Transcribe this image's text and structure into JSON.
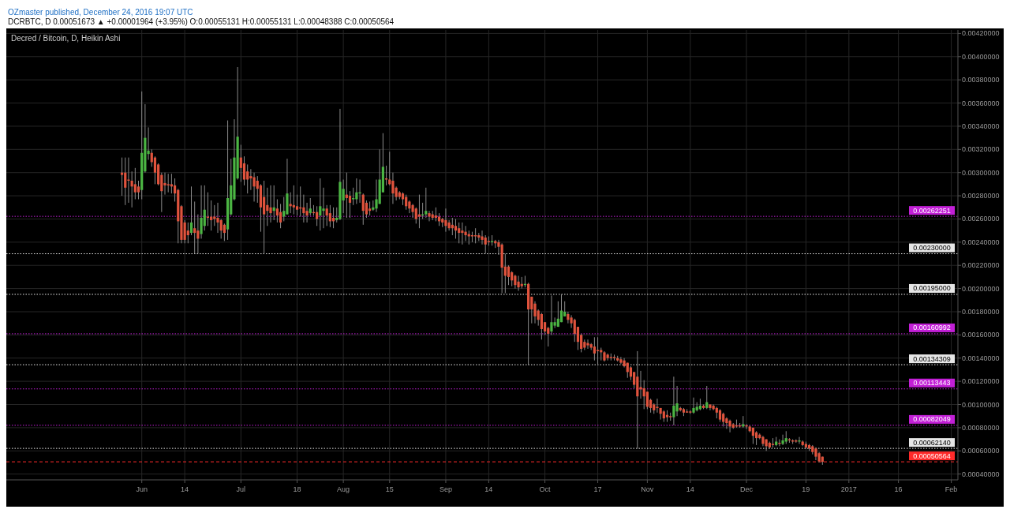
{
  "chart_data": {
    "type": "candlestick",
    "title": "Decred / Bitcoin, D, Heikin Ashi",
    "annotations": [
      "OZmaster published, December 24, 2016 19:07 UTC",
      "DCRBTC, D  0.00051673 ▲ +0.00001964 (+3.95%)  O:0.00055131  H:0.00055131  L:0.00048388  C:0.00050564"
    ],
    "x": [
      "2016-05-26",
      "2016-05-27",
      "2016-05-28",
      "2016-05-29",
      "2016-05-30",
      "2016-05-31",
      "2016-06-01",
      "2016-06-02",
      "2016-06-03",
      "2016-06-04",
      "2016-06-05",
      "2016-06-06",
      "2016-06-07",
      "2016-06-08",
      "2016-06-09",
      "2016-06-10",
      "2016-06-11",
      "2016-06-12",
      "2016-06-13",
      "2016-06-14",
      "2016-06-15",
      "2016-06-16",
      "2016-06-17",
      "2016-06-18",
      "2016-06-19",
      "2016-06-20",
      "2016-06-21",
      "2016-06-22",
      "2016-06-23",
      "2016-06-24",
      "2016-06-25",
      "2016-06-26",
      "2016-06-27",
      "2016-06-28",
      "2016-06-29",
      "2016-06-30",
      "2016-07-01",
      "2016-07-02",
      "2016-07-03",
      "2016-07-04",
      "2016-07-05",
      "2016-07-06",
      "2016-07-07",
      "2016-07-08",
      "2016-07-09",
      "2016-07-10",
      "2016-07-11",
      "2016-07-12",
      "2016-07-13",
      "2016-07-14",
      "2016-07-15",
      "2016-07-16",
      "2016-07-17",
      "2016-07-18",
      "2016-07-19",
      "2016-07-20",
      "2016-07-21",
      "2016-07-22",
      "2016-07-23",
      "2016-07-24",
      "2016-07-25",
      "2016-07-26",
      "2016-07-27",
      "2016-07-28",
      "2016-07-29",
      "2016-07-30",
      "2016-07-31",
      "2016-08-01",
      "2016-08-02",
      "2016-08-03",
      "2016-08-04",
      "2016-08-05",
      "2016-08-06",
      "2016-08-07",
      "2016-08-08",
      "2016-08-09",
      "2016-08-10",
      "2016-08-11",
      "2016-08-12",
      "2016-08-13",
      "2016-08-14",
      "2016-08-15",
      "2016-08-16",
      "2016-08-17",
      "2016-08-18",
      "2016-08-19",
      "2016-08-20",
      "2016-08-21",
      "2016-08-22",
      "2016-08-23",
      "2016-08-24",
      "2016-08-25",
      "2016-08-26",
      "2016-08-27",
      "2016-08-28",
      "2016-08-29",
      "2016-08-30",
      "2016-08-31",
      "2016-09-01",
      "2016-09-02",
      "2016-09-03",
      "2016-09-04",
      "2016-09-05",
      "2016-09-06",
      "2016-09-07",
      "2016-09-08",
      "2016-09-09",
      "2016-09-10",
      "2016-09-11",
      "2016-09-12",
      "2016-09-13",
      "2016-09-14",
      "2016-09-15",
      "2016-09-16",
      "2016-09-17",
      "2016-09-18",
      "2016-09-19",
      "2016-09-20",
      "2016-09-21",
      "2016-09-22",
      "2016-09-23",
      "2016-09-24",
      "2016-09-25",
      "2016-09-26",
      "2016-09-27",
      "2016-09-28",
      "2016-09-29",
      "2016-09-30",
      "2016-10-01",
      "2016-10-02",
      "2016-10-03",
      "2016-10-04",
      "2016-10-05",
      "2016-10-06",
      "2016-10-07",
      "2016-10-08",
      "2016-10-09",
      "2016-10-10",
      "2016-10-11",
      "2016-10-12",
      "2016-10-13",
      "2016-10-14",
      "2016-10-15",
      "2016-10-16",
      "2016-10-17",
      "2016-10-18",
      "2016-10-19",
      "2016-10-20",
      "2016-10-21",
      "2016-10-22",
      "2016-10-23",
      "2016-10-24",
      "2016-10-25",
      "2016-10-26",
      "2016-10-27",
      "2016-10-28",
      "2016-10-29",
      "2016-10-30",
      "2016-10-31",
      "2016-11-01",
      "2016-11-02",
      "2016-11-03",
      "2016-11-04",
      "2016-11-05",
      "2016-11-06",
      "2016-11-07",
      "2016-11-08",
      "2016-11-09",
      "2016-11-10",
      "2016-11-11",
      "2016-11-12",
      "2016-11-13",
      "2016-11-14",
      "2016-11-15",
      "2016-11-16",
      "2016-11-17",
      "2016-11-18",
      "2016-11-19",
      "2016-11-20",
      "2016-11-21",
      "2016-11-22",
      "2016-11-23",
      "2016-11-24",
      "2016-11-25",
      "2016-11-26",
      "2016-11-27",
      "2016-11-28",
      "2016-11-29",
      "2016-11-30",
      "2016-12-01",
      "2016-12-02",
      "2016-12-03",
      "2016-12-04",
      "2016-12-05",
      "2016-12-06",
      "2016-12-07",
      "2016-12-08",
      "2016-12-09",
      "2016-12-10",
      "2016-12-11",
      "2016-12-12",
      "2016-12-13",
      "2016-12-14",
      "2016-12-15",
      "2016-12-16",
      "2016-12-17",
      "2016-12-18",
      "2016-12-19",
      "2016-12-20",
      "2016-12-21",
      "2016-12-22",
      "2016-12-23",
      "2016-12-24"
    ],
    "ohlc": [
      [
        0.003,
        0.00313,
        0.0028,
        0.00298
      ],
      [
        0.003,
        0.00313,
        0.00272,
        0.00287
      ],
      [
        0.00294,
        0.00313,
        0.00274,
        0.00293
      ],
      [
        0.00293,
        0.00301,
        0.0027,
        0.00288
      ],
      [
        0.0029,
        0.00304,
        0.00277,
        0.00283
      ],
      [
        0.00288,
        0.00293,
        0.00277,
        0.00283
      ],
      [
        0.00285,
        0.0037,
        0.00277,
        0.00317
      ],
      [
        0.00301,
        0.00359,
        0.003,
        0.0033
      ],
      [
        0.00316,
        0.00339,
        0.00311,
        0.00319
      ],
      [
        0.00317,
        0.0032,
        0.00305,
        0.00309
      ],
      [
        0.00313,
        0.00314,
        0.0029,
        0.003
      ],
      [
        0.00307,
        0.00308,
        0.00289,
        0.0029
      ],
      [
        0.00298,
        0.003,
        0.00266,
        0.00284
      ],
      [
        0.00291,
        0.003,
        0.00281,
        0.00289
      ],
      [
        0.0029,
        0.00299,
        0.00283,
        0.00289
      ],
      [
        0.0029,
        0.00299,
        0.00282,
        0.00288
      ],
      [
        0.00289,
        0.00295,
        0.00275,
        0.00282
      ],
      [
        0.00285,
        0.00286,
        0.00239,
        0.00258
      ],
      [
        0.00271,
        0.00272,
        0.00239,
        0.00242
      ],
      [
        0.00257,
        0.00259,
        0.00239,
        0.00242
      ],
      [
        0.0025,
        0.00257,
        0.00239,
        0.00246
      ],
      [
        0.00248,
        0.00288,
        0.00246,
        0.00257
      ],
      [
        0.00252,
        0.00275,
        0.0023,
        0.00248
      ],
      [
        0.0025,
        0.00264,
        0.0023,
        0.00243
      ],
      [
        0.00247,
        0.00289,
        0.00243,
        0.00261
      ],
      [
        0.00254,
        0.00289,
        0.0025,
        0.00268
      ],
      [
        0.00262,
        0.00283,
        0.00254,
        0.00261
      ],
      [
        0.00262,
        0.00276,
        0.0025,
        0.00259
      ],
      [
        0.00262,
        0.00272,
        0.00254,
        0.0026
      ],
      [
        0.00261,
        0.00274,
        0.00248,
        0.00257
      ],
      [
        0.00259,
        0.0026,
        0.00243,
        0.0025
      ],
      [
        0.00255,
        0.00256,
        0.00241,
        0.00248
      ],
      [
        0.00251,
        0.00345,
        0.00242,
        0.00278
      ],
      [
        0.00264,
        0.00312,
        0.00263,
        0.00289
      ],
      [
        0.00277,
        0.00346,
        0.00276,
        0.00313
      ],
      [
        0.00295,
        0.00391,
        0.00294,
        0.00331
      ],
      [
        0.00313,
        0.00324,
        0.00292,
        0.00304
      ],
      [
        0.00308,
        0.00314,
        0.00289,
        0.00294
      ],
      [
        0.00301,
        0.00307,
        0.00282,
        0.00294
      ],
      [
        0.00297,
        0.00303,
        0.00285,
        0.00295
      ],
      [
        0.00296,
        0.003,
        0.00275,
        0.00288
      ],
      [
        0.00293,
        0.00297,
        0.00274,
        0.00286
      ],
      [
        0.00289,
        0.0029,
        0.00249,
        0.0027
      ],
      [
        0.00279,
        0.00293,
        0.0023,
        0.00264
      ],
      [
        0.00272,
        0.00287,
        0.00254,
        0.00267
      ],
      [
        0.0027,
        0.00289,
        0.00257,
        0.00265
      ],
      [
        0.00267,
        0.00289,
        0.00259,
        0.0027
      ],
      [
        0.00269,
        0.00277,
        0.00257,
        0.00263
      ],
      [
        0.00266,
        0.00273,
        0.00252,
        0.00257
      ],
      [
        0.00262,
        0.00279,
        0.00258,
        0.00267
      ],
      [
        0.00264,
        0.00312,
        0.00264,
        0.00282
      ],
      [
        0.00273,
        0.00283,
        0.00265,
        0.00271
      ],
      [
        0.00272,
        0.00289,
        0.00264,
        0.0027
      ],
      [
        0.00271,
        0.00281,
        0.00263,
        0.00268
      ],
      [
        0.0027,
        0.00288,
        0.00262,
        0.00269
      ],
      [
        0.0027,
        0.00281,
        0.00257,
        0.00265
      ],
      [
        0.00267,
        0.00274,
        0.00257,
        0.00263
      ],
      [
        0.00265,
        0.00278,
        0.00263,
        0.00269
      ],
      [
        0.00266,
        0.00272,
        0.00263,
        0.00265
      ],
      [
        0.00266,
        0.00271,
        0.00254,
        0.0026
      ],
      [
        0.00263,
        0.00295,
        0.0025,
        0.00271
      ],
      [
        0.00267,
        0.00287,
        0.00252,
        0.00269
      ],
      [
        0.00269,
        0.00272,
        0.00254,
        0.00263
      ],
      [
        0.00265,
        0.00272,
        0.00253,
        0.00258
      ],
      [
        0.00261,
        0.0027,
        0.00252,
        0.00258
      ],
      [
        0.00259,
        0.0027,
        0.00257,
        0.00261
      ],
      [
        0.0026,
        0.00355,
        0.00259,
        0.00292
      ],
      [
        0.00276,
        0.00294,
        0.00265,
        0.00286
      ],
      [
        0.00281,
        0.003,
        0.00261,
        0.00278
      ],
      [
        0.0028,
        0.00284,
        0.00261,
        0.00274
      ],
      [
        0.00277,
        0.00287,
        0.00272,
        0.00278
      ],
      [
        0.00277,
        0.00295,
        0.00273,
        0.00283
      ],
      [
        0.00282,
        0.00294,
        0.00274,
        0.00283
      ],
      [
        0.00281,
        0.00282,
        0.00255,
        0.00267
      ],
      [
        0.00274,
        0.00276,
        0.00261,
        0.00264
      ],
      [
        0.00269,
        0.00275,
        0.00263,
        0.00267
      ],
      [
        0.00268,
        0.00276,
        0.00267,
        0.0027
      ],
      [
        0.00269,
        0.00294,
        0.00266,
        0.00277
      ],
      [
        0.00273,
        0.0032,
        0.00273,
        0.00294
      ],
      [
        0.00283,
        0.00334,
        0.00283,
        0.00305
      ],
      [
        0.00295,
        0.00306,
        0.00289,
        0.00294
      ],
      [
        0.00294,
        0.00318,
        0.00289,
        0.0029
      ],
      [
        0.00293,
        0.003,
        0.00273,
        0.00282
      ],
      [
        0.00287,
        0.00288,
        0.00276,
        0.00279
      ],
      [
        0.00283,
        0.00284,
        0.00277,
        0.00279
      ],
      [
        0.00282,
        0.00283,
        0.00272,
        0.00277
      ],
      [
        0.00279,
        0.00281,
        0.00268,
        0.00271
      ],
      [
        0.00275,
        0.00276,
        0.00265,
        0.00269
      ],
      [
        0.00272,
        0.00273,
        0.00261,
        0.00266
      ],
      [
        0.00269,
        0.0027,
        0.00256,
        0.0026
      ],
      [
        0.00264,
        0.00281,
        0.00252,
        0.00262
      ],
      [
        0.00263,
        0.00274,
        0.0026,
        0.00264
      ],
      [
        0.00264,
        0.00287,
        0.00261,
        0.00267
      ],
      [
        0.00265,
        0.00267,
        0.00258,
        0.00262
      ],
      [
        0.00264,
        0.00267,
        0.00259,
        0.00261
      ],
      [
        0.00263,
        0.0027,
        0.00258,
        0.00261
      ],
      [
        0.00262,
        0.00265,
        0.00254,
        0.00258
      ],
      [
        0.0026,
        0.00261,
        0.00253,
        0.00257
      ],
      [
        0.00259,
        0.00269,
        0.00249,
        0.00254
      ],
      [
        0.00257,
        0.00259,
        0.0025,
        0.00252
      ],
      [
        0.00255,
        0.00261,
        0.00246,
        0.00252
      ],
      [
        0.00254,
        0.0026,
        0.00243,
        0.0025
      ],
      [
        0.00252,
        0.00257,
        0.00239,
        0.00248
      ],
      [
        0.0025,
        0.00257,
        0.00238,
        0.00248
      ],
      [
        0.00249,
        0.00254,
        0.00241,
        0.00246
      ],
      [
        0.00247,
        0.0025,
        0.00238,
        0.00245
      ],
      [
        0.00246,
        0.00249,
        0.0024,
        0.00245
      ],
      [
        0.00246,
        0.00252,
        0.00239,
        0.00245
      ],
      [
        0.00246,
        0.00248,
        0.00241,
        0.00244
      ],
      [
        0.00245,
        0.0025,
        0.00238,
        0.00242
      ],
      [
        0.00244,
        0.00246,
        0.0023,
        0.00238
      ],
      [
        0.00241,
        0.00245,
        0.00237,
        0.0024
      ],
      [
        0.0024,
        0.00246,
        0.00237,
        0.00241
      ],
      [
        0.00241,
        0.00242,
        0.00235,
        0.00239
      ],
      [
        0.0024,
        0.00242,
        0.00229,
        0.00236
      ],
      [
        0.00238,
        0.00239,
        0.00196,
        0.00218
      ],
      [
        0.00219,
        0.0023,
        0.00196,
        0.00211
      ],
      [
        0.00219,
        0.0022,
        0.00203,
        0.0021
      ],
      [
        0.00214,
        0.00215,
        0.00202,
        0.00207
      ],
      [
        0.00211,
        0.00212,
        0.002,
        0.00203
      ],
      [
        0.00206,
        0.00211,
        0.00198,
        0.00201
      ],
      [
        0.00204,
        0.0021,
        0.002,
        0.00202
      ],
      [
        0.00203,
        0.00211,
        0.00201,
        0.00204
      ],
      [
        0.00204,
        0.00205,
        0.00134,
        0.00182
      ],
      [
        0.00193,
        0.00193,
        0.0017,
        0.00182
      ],
      [
        0.00187,
        0.00189,
        0.0017,
        0.00176
      ],
      [
        0.00181,
        0.00182,
        0.00168,
        0.00173
      ],
      [
        0.00178,
        0.00179,
        0.00156,
        0.00165
      ],
      [
        0.00171,
        0.00171,
        0.0016,
        0.00163
      ],
      [
        0.00166,
        0.00167,
        0.0015,
        0.00161
      ],
      [
        0.00163,
        0.00194,
        0.0016,
        0.00171
      ],
      [
        0.00168,
        0.00175,
        0.00166,
        0.00171
      ],
      [
        0.00167,
        0.00189,
        0.00167,
        0.00174
      ],
      [
        0.00171,
        0.00195,
        0.00171,
        0.00181
      ],
      [
        0.00176,
        0.00189,
        0.00176,
        0.0018
      ],
      [
        0.00178,
        0.0018,
        0.0017,
        0.00173
      ],
      [
        0.00175,
        0.00177,
        0.00166,
        0.0017
      ],
      [
        0.00173,
        0.00174,
        0.00154,
        0.00161
      ],
      [
        0.00167,
        0.00167,
        0.00147,
        0.00154
      ],
      [
        0.0016,
        0.00161,
        0.00145,
        0.00148
      ],
      [
        0.00154,
        0.00156,
        0.00147,
        0.00149
      ],
      [
        0.00153,
        0.00156,
        0.00148,
        0.00151
      ],
      [
        0.00152,
        0.00153,
        0.00147,
        0.00149
      ],
      [
        0.0015,
        0.00158,
        0.00138,
        0.00144
      ],
      [
        0.00147,
        0.00158,
        0.00135,
        0.00146
      ],
      [
        0.00147,
        0.00149,
        0.00138,
        0.00145
      ],
      [
        0.00145,
        0.00146,
        0.00137,
        0.00138
      ],
      [
        0.00143,
        0.00144,
        0.00138,
        0.0014
      ],
      [
        0.00141,
        0.00144,
        0.00138,
        0.0014
      ],
      [
        0.00141,
        0.00143,
        0.00138,
        0.0014
      ],
      [
        0.0014,
        0.00142,
        0.00137,
        0.00138
      ],
      [
        0.00139,
        0.00141,
        0.00135,
        0.00136
      ],
      [
        0.00138,
        0.0014,
        0.00132,
        0.00133
      ],
      [
        0.00136,
        0.00136,
        0.00123,
        0.00128
      ],
      [
        0.00132,
        0.00133,
        0.00121,
        0.00124
      ],
      [
        0.00128,
        0.00128,
        0.00114,
        0.00117
      ],
      [
        0.00124,
        0.00146,
        0.00062,
        0.00107
      ],
      [
        0.00115,
        0.00129,
        0.00105,
        0.00113
      ],
      [
        0.00114,
        0.00121,
        0.00096,
        0.00107
      ],
      [
        0.00111,
        0.00111,
        0.00096,
        0.00098
      ],
      [
        0.00104,
        0.00105,
        0.00093,
        0.00097
      ],
      [
        0.001,
        0.00101,
        0.00092,
        0.00095
      ],
      [
        0.00098,
        0.00105,
        0.00093,
        0.00097
      ],
      [
        0.00097,
        0.00097,
        0.00087,
        0.00092
      ],
      [
        0.00094,
        0.00095,
        0.00085,
        0.00088
      ],
      [
        0.00091,
        0.00095,
        0.00085,
        0.00089
      ],
      [
        0.0009,
        0.00093,
        0.00086,
        0.00089
      ],
      [
        0.00089,
        0.00124,
        0.00082,
        0.00099
      ],
      [
        0.00094,
        0.00116,
        0.0009,
        0.00101
      ],
      [
        0.00097,
        0.00098,
        0.00094,
        0.00095
      ],
      [
        0.00096,
        0.00097,
        0.0009,
        0.00093
      ],
      [
        0.00094,
        0.00096,
        0.00093,
        0.00093
      ],
      [
        0.00094,
        0.00095,
        0.00092,
        0.00093
      ],
      [
        0.00093,
        0.00106,
        0.00092,
        0.00097
      ],
      [
        0.00095,
        0.00102,
        0.00094,
        0.00098
      ],
      [
        0.00096,
        0.00105,
        0.00095,
        0.00099
      ],
      [
        0.00099,
        0.001,
        0.00096,
        0.00097
      ],
      [
        0.00097,
        0.00116,
        0.00096,
        0.00102
      ],
      [
        0.001,
        0.001,
        0.00095,
        0.00097
      ],
      [
        0.00099,
        0.001,
        0.00095,
        0.00096
      ],
      [
        0.00097,
        0.00098,
        0.00088,
        0.00093
      ],
      [
        0.00095,
        0.00096,
        0.00085,
        0.00087
      ],
      [
        0.00092,
        0.00093,
        0.00081,
        0.00085
      ],
      [
        0.00088,
        0.00089,
        0.00079,
        0.00084
      ],
      [
        0.00086,
        0.00087,
        0.00076,
        0.00081
      ],
      [
        0.00083,
        0.00084,
        0.00079,
        0.0008
      ],
      [
        0.00082,
        0.00087,
        0.0008,
        0.00081
      ],
      [
        0.00082,
        0.00084,
        0.0008,
        0.00081
      ],
      [
        0.00081,
        0.0009,
        0.0008,
        0.00083
      ],
      [
        0.00082,
        0.00083,
        0.00079,
        0.00081
      ],
      [
        0.00081,
        0.00082,
        0.00076,
        0.00077
      ],
      [
        0.0008,
        0.0008,
        0.00066,
        0.00073
      ],
      [
        0.00076,
        0.00077,
        0.00065,
        0.00071
      ],
      [
        0.00074,
        0.00075,
        0.0007,
        0.00071
      ],
      [
        0.00072,
        0.00073,
        0.00064,
        0.00066
      ],
      [
        0.0007,
        0.0007,
        0.0006,
        0.00064
      ],
      [
        0.00067,
        0.00068,
        0.00062,
        0.00063
      ],
      [
        0.00066,
        0.00071,
        0.00063,
        0.00065
      ],
      [
        0.00065,
        0.00072,
        0.00064,
        0.00068
      ],
      [
        0.00067,
        0.0007,
        0.00064,
        0.00066
      ],
      [
        0.00066,
        0.00074,
        0.00065,
        0.00069
      ],
      [
        0.00068,
        0.00077,
        0.00066,
        0.00071
      ],
      [
        0.0007,
        0.00071,
        0.00067,
        0.00069
      ],
      [
        0.00069,
        0.0007,
        0.00066,
        0.00068
      ],
      [
        0.00069,
        0.0007,
        0.00067,
        0.00068
      ],
      [
        0.00068,
        0.00072,
        0.00066,
        0.00069
      ],
      [
        0.00068,
        0.00069,
        0.00064,
        0.00065
      ],
      [
        0.00066,
        0.00068,
        0.00062,
        0.00063
      ],
      [
        0.00065,
        0.00066,
        0.0006,
        0.00062
      ],
      [
        0.00064,
        0.00065,
        0.00057,
        0.00059
      ],
      [
        0.00062,
        0.00063,
        0.00052,
        0.00055
      ],
      [
        0.00058,
        0.00059,
        0.0005,
        0.00051
      ],
      [
        0.00055,
        0.00055,
        0.00048,
        0.000506
      ]
    ],
    "colors": [
      "#e0533d",
      "#e0533d",
      "#e0533d",
      "#e0533d",
      "#e0533d",
      "#e0533d",
      "#4bb543",
      "#4bb543",
      "#4bb543",
      "#e0533d",
      "#e0533d",
      "#e0533d",
      "#e0533d",
      "#e0533d",
      "#e0533d",
      "#e0533d",
      "#e0533d",
      "#e0533d",
      "#e0533d",
      "#e0533d",
      "#e0533d",
      "#4bb543",
      "#e0533d",
      "#e0533d",
      "#4bb543",
      "#4bb543",
      "#e0533d",
      "#e0533d",
      "#e0533d",
      "#e0533d",
      "#e0533d",
      "#e0533d",
      "#4bb543",
      "#4bb543",
      "#4bb543",
      "#4bb543",
      "#e0533d",
      "#e0533d",
      "#e0533d",
      "#e0533d",
      "#e0533d",
      "#e0533d",
      "#e0533d",
      "#e0533d",
      "#e0533d",
      "#e0533d",
      "#4bb543",
      "#e0533d",
      "#e0533d",
      "#4bb543",
      "#4bb543",
      "#e0533d",
      "#e0533d",
      "#e0533d",
      "#e0533d",
      "#e0533d",
      "#e0533d",
      "#4bb543",
      "#e0533d",
      "#e0533d",
      "#4bb543",
      "#4bb543",
      "#e0533d",
      "#e0533d",
      "#e0533d",
      "#4bb543",
      "#4bb543",
      "#4bb543",
      "#e0533d",
      "#e0533d",
      "#4bb543",
      "#4bb543",
      "#4bb543",
      "#e0533d",
      "#e0533d",
      "#e0533d",
      "#4bb543",
      "#4bb543",
      "#4bb543",
      "#4bb543",
      "#e0533d",
      "#e0533d",
      "#e0533d",
      "#e0533d",
      "#e0533d",
      "#e0533d",
      "#e0533d",
      "#e0533d",
      "#e0533d",
      "#e0533d",
      "#e0533d",
      "#4bb543",
      "#4bb543",
      "#e0533d",
      "#e0533d",
      "#e0533d",
      "#e0533d",
      "#e0533d",
      "#e0533d",
      "#e0533d",
      "#e0533d",
      "#e0533d",
      "#e0533d",
      "#e0533d",
      "#e0533d",
      "#e0533d",
      "#e0533d",
      "#e0533d",
      "#e0533d",
      "#e0533d",
      "#e0533d",
      "#e0533d",
      "#4bb543",
      "#e0533d",
      "#e0533d",
      "#e0533d",
      "#e0533d",
      "#e0533d",
      "#e0533d",
      "#e0533d",
      "#e0533d",
      "#e0533d",
      "#4bb543",
      "#e0533d",
      "#e0533d",
      "#e0533d",
      "#e0533d",
      "#e0533d",
      "#e0533d",
      "#e0533d",
      "#4bb543",
      "#4bb543",
      "#4bb543",
      "#4bb543",
      "#4bb543",
      "#e0533d",
      "#e0533d",
      "#e0533d",
      "#e0533d",
      "#e0533d",
      "#e0533d",
      "#e0533d",
      "#e0533d",
      "#e0533d",
      "#e0533d",
      "#e0533d",
      "#e0533d",
      "#e0533d",
      "#e0533d",
      "#e0533d",
      "#e0533d",
      "#e0533d",
      "#e0533d",
      "#e0533d",
      "#e0533d",
      "#e0533d",
      "#e0533d",
      "#e0533d",
      "#e0533d",
      "#e0533d",
      "#e0533d",
      "#e0533d",
      "#e0533d",
      "#e0533d",
      "#e0533d",
      "#e0533d",
      "#e0533d",
      "#4bb543",
      "#4bb543",
      "#e0533d",
      "#e0533d",
      "#e0533d",
      "#e0533d",
      "#4bb543",
      "#4bb543",
      "#4bb543",
      "#e0533d",
      "#4bb543",
      "#e0533d",
      "#e0533d",
      "#e0533d",
      "#e0533d",
      "#e0533d",
      "#e0533d",
      "#e0533d",
      "#e0533d",
      "#e0533d",
      "#e0533d",
      "#4bb543",
      "#e0533d",
      "#e0533d",
      "#e0533d",
      "#e0533d",
      "#e0533d",
      "#e0533d",
      "#e0533d",
      "#e0533d",
      "#e0533d",
      "#4bb543",
      "#e0533d",
      "#4bb543",
      "#4bb543",
      "#e0533d",
      "#e0533d",
      "#e0533d",
      "#4bb543",
      "#e0533d",
      "#e0533d",
      "#e0533d",
      "#e0533d",
      "#e0533d",
      "#e0533d",
      "#e0533d"
    ],
    "xlim": [
      "2016-04-21",
      "2017-02-03"
    ],
    "xticks": [
      {
        "value": "2016-06-01",
        "label": "Jun"
      },
      {
        "value": "2016-06-14",
        "label": "14"
      },
      {
        "value": "2016-07-01",
        "label": "Jul"
      },
      {
        "value": "2016-07-18",
        "label": "18"
      },
      {
        "value": "2016-08-01",
        "label": "Aug"
      },
      {
        "value": "2016-08-15",
        "label": "15"
      },
      {
        "value": "2016-09-01",
        "label": "Sep"
      },
      {
        "value": "2016-09-14",
        "label": "14"
      },
      {
        "value": "2016-10-01",
        "label": "Oct"
      },
      {
        "value": "2016-10-17",
        "label": "17"
      },
      {
        "value": "2016-11-01",
        "label": "Nov"
      },
      {
        "value": "2016-11-14",
        "label": "14"
      },
      {
        "value": "2016-12-01",
        "label": "Dec"
      },
      {
        "value": "2016-12-19",
        "label": "19"
      },
      {
        "value": "2017-01-01",
        "label": "2017"
      },
      {
        "value": "2017-01-16",
        "label": "16"
      },
      {
        "value": "2017-02-01",
        "label": "Feb"
      }
    ],
    "ylim": [
      0.00035,
      0.00423
    ],
    "yticks": [
      {
        "value": 0.0004,
        "label": "0.00040000"
      },
      {
        "value": 0.0006,
        "label": "0.00060000"
      },
      {
        "value": 0.0008,
        "label": "0.00080000"
      },
      {
        "value": 0.001,
        "label": "0.00100000"
      },
      {
        "value": 0.0012,
        "label": "0.00120000"
      },
      {
        "value": 0.0014,
        "label": "0.00140000"
      },
      {
        "value": 0.0016,
        "label": "0.00160000"
      },
      {
        "value": 0.0018,
        "label": "0.00180000"
      },
      {
        "value": 0.002,
        "label": "0.00200000"
      },
      {
        "value": 0.0022,
        "label": "0.00220000"
      },
      {
        "value": 0.0024,
        "label": "0.00240000"
      },
      {
        "value": 0.0026,
        "label": "0.00260000"
      },
      {
        "value": 0.0028,
        "label": "0.00280000"
      },
      {
        "value": 0.003,
        "label": "0.00300000"
      },
      {
        "value": 0.0032,
        "label": "0.00320000"
      },
      {
        "value": 0.0034,
        "label": "0.00340000"
      },
      {
        "value": 0.0036,
        "label": "0.00360000"
      },
      {
        "value": 0.0038,
        "label": "0.00380000"
      },
      {
        "value": 0.004,
        "label": "0.00400000"
      },
      {
        "value": 0.0042,
        "label": "0.00420000"
      }
    ],
    "ref_lines": [
      {
        "axis": "y",
        "value": 0.00262251,
        "label": "0.00262251",
        "color": "#c21fd6",
        "line_style": "dotted"
      },
      {
        "axis": "y",
        "value": 0.0023,
        "label": "0.00230000",
        "color": "#e6e6e6",
        "line_style": "dotted"
      },
      {
        "axis": "y",
        "value": 0.00195,
        "label": "0.00195000",
        "color": "#e6e6e6",
        "line_style": "dotted"
      },
      {
        "axis": "y",
        "value": 0.00160992,
        "label": "0.00160992",
        "color": "#c21fd6",
        "line_style": "dotted"
      },
      {
        "axis": "y",
        "value": 0.00134309,
        "label": "0.00134309",
        "color": "#e6e6e6",
        "line_style": "dotted"
      },
      {
        "axis": "y",
        "value": 0.00113443,
        "label": "0.00113443",
        "color": "#c21fd6",
        "line_style": "dotted"
      },
      {
        "axis": "y",
        "value": 0.00082049,
        "label": "0.00082049",
        "color": "#c21fd6",
        "line_style": "dotted"
      },
      {
        "axis": "y",
        "value": 0.0006214,
        "label": "0.00062140",
        "color": "#e6e6e6",
        "line_style": "dotted"
      },
      {
        "axis": "y",
        "value": 0.00050564,
        "label": "0.00050564",
        "color": "#ff2a2a",
        "line_style": "dashed"
      }
    ],
    "grid": true
  }
}
